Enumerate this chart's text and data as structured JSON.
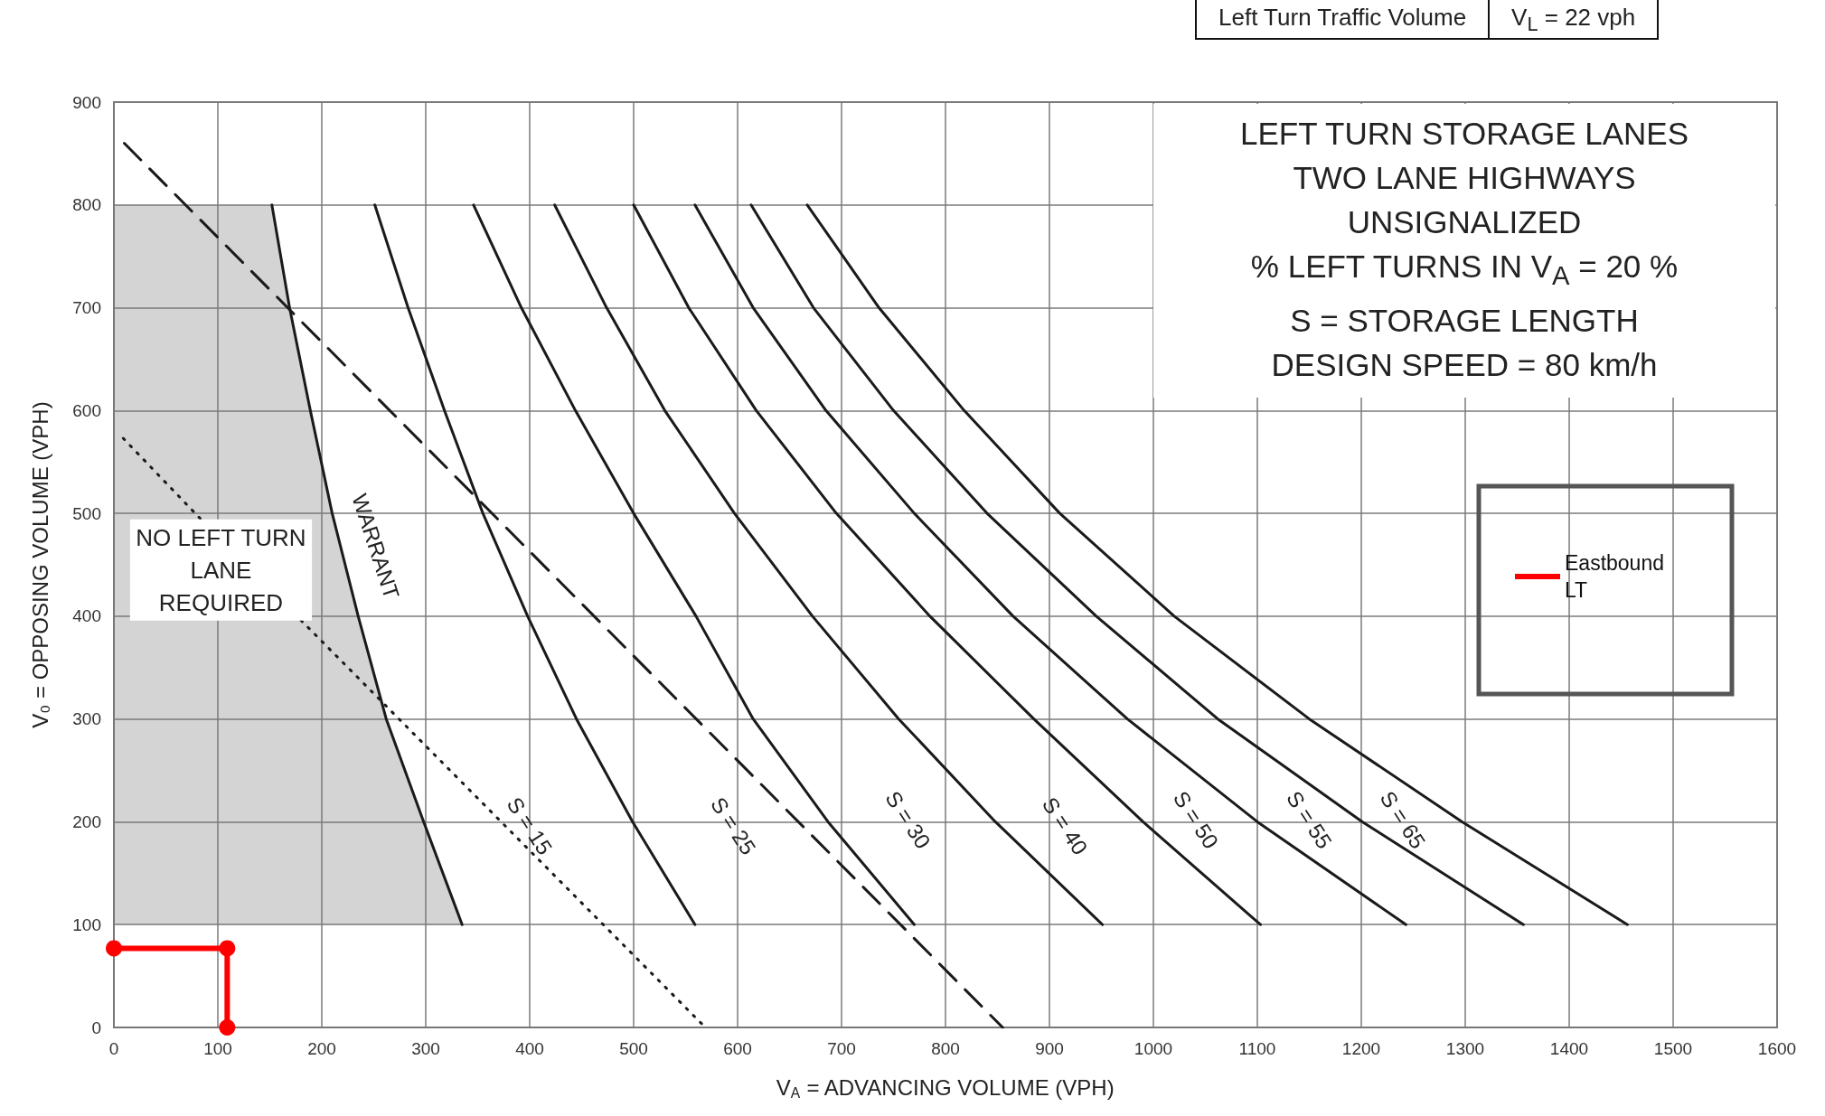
{
  "chart_data": {
    "type": "line",
    "title": "LEFT TURN STORAGE LANES",
    "subtitle": "TWO LANE HIGHWAYS\nUNSIGNALIZED\n% LEFT TURNS IN V$_{A}$ = 20 %\nS = STORAGE LENGTH\nDESIGN SPEED = 80 km/h",
    "xlabel": "V$_{A}$ = ADVANCING VOLUME (VPH)",
    "ylabel": "V₀ = OPPOSING VOLUME (VPH)",
    "xlim": [
      0,
      1600
    ],
    "ylim": [
      0,
      900
    ],
    "xticks": [
      0,
      100,
      200,
      300,
      400,
      500,
      600,
      700,
      800,
      900,
      1000,
      1100,
      1200,
      1300,
      1400,
      1500,
      1600
    ],
    "yticks": [
      0,
      100,
      200,
      300,
      400,
      500,
      600,
      700,
      800,
      900
    ],
    "grid": true,
    "legend": "right",
    "marker": "none",
    "series": [
      {
        "color": "#1a1a1a",
        "x": [
          152,
          169,
          189,
          210,
          235,
          262,
          298,
          335
        ],
        "values": [
          800,
          700,
          600,
          500,
          400,
          300,
          200,
          100
        ]
      },
      {
        "color": "#1a1a1a",
        "x": [
          251,
          283,
          318,
          355,
          398,
          445,
          499,
          559
        ],
        "values": [
          800,
          700,
          600,
          500,
          400,
          300,
          200,
          100
        ]
      },
      {
        "color": "#1a1a1a",
        "x": [
          346,
          392,
          444,
          500,
          560,
          615,
          687,
          770
        ],
        "values": [
          800,
          700,
          600,
          500,
          400,
          300,
          200,
          100
        ]
      },
      {
        "color": "#1a1a1a",
        "x": [
          424,
          474,
          530,
          597,
          672,
          755,
          848,
          951
        ],
        "values": [
          800,
          700,
          600,
          500,
          400,
          300,
          200,
          100
        ]
      },
      {
        "color": "#1a1a1a",
        "x": [
          500,
          553,
          618,
          695,
          785,
          885,
          990,
          1103
        ],
        "values": [
          800,
          700,
          600,
          500,
          400,
          300,
          200,
          100
        ]
      },
      {
        "color": "#1a1a1a",
        "x": [
          559,
          615,
          685,
          770,
          865,
          975,
          1100,
          1243
        ],
        "values": [
          800,
          700,
          600,
          500,
          400,
          300,
          200,
          100
        ]
      },
      {
        "color": "#1a1a1a",
        "x": [
          613,
          673,
          750,
          840,
          945,
          1062,
          1201,
          1356
        ],
        "values": [
          800,
          700,
          600,
          500,
          400,
          300,
          200,
          100
        ]
      },
      {
        "color": "#1a1a1a",
        "x": [
          667,
          736,
          818,
          910,
          1020,
          1150,
          1297,
          1456
        ],
        "values": [
          800,
          700,
          600,
          500,
          400,
          300,
          200,
          100
        ]
      },
      {
        "color": "#1a1a1a",
        "line_style": "dashed",
        "x": [
          10,
          855
        ],
        "values": [
          860,
          0
        ]
      },
      {
        "color": "#1a1a1a",
        "line_style": "dotted",
        "x": [
          9,
          83,
          130,
          180,
          569
        ],
        "values": [
          573,
          495,
          null,
          396,
          0
        ]
      },
      {
        "name": "Eastbound LT",
        "color": "#ff0000",
        "marker": "circle",
        "x": [
          0,
          109,
          109
        ],
        "values": [
          77,
          77,
          0
        ]
      }
    ],
    "annotations": [
      "NO LEFT TURN\nLANE\nREQUIRED",
      "WARRANT",
      "S = 15",
      "S = 25",
      "S = 30",
      "S = 40",
      "S = 50",
      "S = 55",
      "S = 65",
      "Left Turn Traffic Volume",
      "V$_{L}$ = 22 vph"
    ]
  }
}
